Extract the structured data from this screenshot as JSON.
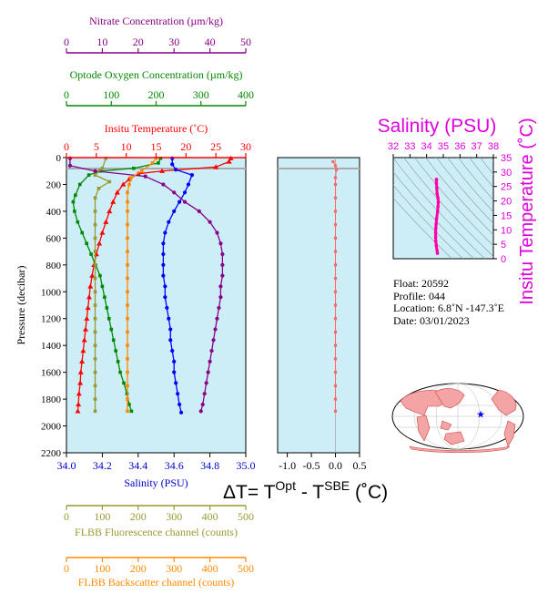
{
  "chart_data": [
    {
      "type": "line",
      "title": "",
      "ylabel": "Pressure (decibar)",
      "ylim": [
        2200,
        0
      ],
      "yticks": [
        0,
        200,
        400,
        600,
        800,
        1000,
        1200,
        1400,
        1600,
        1800,
        2000,
        2200
      ],
      "axes": {
        "salinity": {
          "label": "Salinity (PSU)",
          "range": [
            34.0,
            35.0
          ],
          "ticks": [
            "34.0",
            "34.2",
            "34.4",
            "34.6",
            "34.8",
            "35.0"
          ],
          "color": "#0000cc"
        },
        "temperature": {
          "label": "Insitu Temperature (˚C)",
          "range": [
            0,
            30
          ],
          "ticks": [
            "0",
            "5",
            "10",
            "15",
            "20",
            "25",
            "30"
          ],
          "color": "#ff0000"
        },
        "oxygen": {
          "label": "Optode Oxygen Concentration (µm/kg)",
          "range": [
            0,
            400
          ],
          "ticks": [
            "0",
            "100",
            "200",
            "300",
            "400"
          ],
          "color": "#008800"
        },
        "nitrate": {
          "label": "Nitrate Concentration (µm/kg)",
          "range": [
            0,
            50
          ],
          "ticks": [
            "0",
            "10",
            "20",
            "30",
            "40",
            "50"
          ],
          "color": "#880088"
        },
        "fluorescence": {
          "label": "FLBB Fluorescence channel (counts)",
          "range": [
            0,
            500
          ],
          "ticks": [
            "0",
            "100",
            "200",
            "300",
            "400",
            "500"
          ],
          "color": "#999933"
        },
        "backscatter": {
          "label": "FLBB Backscatter channel (counts)",
          "range": [
            0,
            500
          ],
          "ticks": [
            "0",
            "100",
            "200",
            "300",
            "400",
            "500"
          ],
          "color": "#ff8800"
        }
      },
      "series": [
        {
          "key": "temperature",
          "color": "#ff0000",
          "marker": "triangle",
          "points": [
            [
              27.5,
              5
            ],
            [
              27.2,
              30
            ],
            [
              25,
              70
            ],
            [
              16,
              100
            ],
            [
              12,
              120
            ],
            [
              10.5,
              160
            ],
            [
              9.5,
              200
            ],
            [
              8.5,
              260
            ],
            [
              7.8,
              330
            ],
            [
              7.2,
              400
            ],
            [
              6.6,
              480
            ],
            [
              6,
              560
            ],
            [
              5.5,
              640
            ],
            [
              5,
              720
            ],
            [
              4.6,
              800
            ],
            [
              4.3,
              880
            ],
            [
              4,
              960
            ],
            [
              3.8,
              1040
            ],
            [
              3.6,
              1120
            ],
            [
              3.4,
              1200
            ],
            [
              3.2,
              1280
            ],
            [
              3,
              1360
            ],
            [
              2.8,
              1440
            ],
            [
              2.6,
              1520
            ],
            [
              2.4,
              1600
            ],
            [
              2.3,
              1680
            ],
            [
              2.1,
              1760
            ],
            [
              2,
              1840
            ],
            [
              1.9,
              1890
            ]
          ]
        },
        {
          "key": "salinity",
          "color": "#0000ff",
          "marker": "circle",
          "points": [
            [
              34.59,
              5
            ],
            [
              34.59,
              50
            ],
            [
              34.61,
              90
            ],
            [
              34.7,
              130
            ],
            [
              34.68,
              200
            ],
            [
              34.66,
              260
            ],
            [
              34.63,
              330
            ],
            [
              34.6,
              400
            ],
            [
              34.57,
              480
            ],
            [
              34.55,
              560
            ],
            [
              34.54,
              640
            ],
            [
              34.54,
              720
            ],
            [
              34.54,
              800
            ],
            [
              34.54,
              880
            ],
            [
              34.55,
              960
            ],
            [
              34.55,
              1040
            ],
            [
              34.56,
              1120
            ],
            [
              34.57,
              1200
            ],
            [
              34.58,
              1280
            ],
            [
              34.58,
              1360
            ],
            [
              34.59,
              1440
            ],
            [
              34.6,
              1520
            ],
            [
              34.6,
              1600
            ],
            [
              34.61,
              1680
            ],
            [
              34.62,
              1760
            ],
            [
              34.63,
              1840
            ],
            [
              34.64,
              1900
            ]
          ]
        },
        {
          "key": "oxygen",
          "color": "#008800",
          "marker": "square",
          "points": [
            [
              210,
              5
            ],
            [
              205,
              40
            ],
            [
              150,
              80
            ],
            [
              75,
              100
            ],
            [
              50,
              130
            ],
            [
              30,
              200
            ],
            [
              20,
              280
            ],
            [
              15,
              330
            ],
            [
              18,
              400
            ],
            [
              25,
              480
            ],
            [
              35,
              560
            ],
            [
              45,
              640
            ],
            [
              55,
              720
            ],
            [
              65,
              800
            ],
            [
              75,
              880
            ],
            [
              80,
              960
            ],
            [
              85,
              1040
            ],
            [
              90,
              1120
            ],
            [
              95,
              1200
            ],
            [
              100,
              1280
            ],
            [
              105,
              1360
            ],
            [
              110,
              1440
            ],
            [
              115,
              1520
            ],
            [
              120,
              1600
            ],
            [
              128,
              1680
            ],
            [
              135,
              1760
            ],
            [
              140,
              1840
            ],
            [
              145,
              1890
            ]
          ]
        },
        {
          "key": "nitrate",
          "color": "#880088",
          "marker": "circle",
          "points": [
            [
              1,
              5
            ],
            [
              1,
              60
            ],
            [
              8,
              100
            ],
            [
              22,
              140
            ],
            [
              27,
              200
            ],
            [
              30,
              260
            ],
            [
              33,
              330
            ],
            [
              37,
              400
            ],
            [
              40,
              480
            ],
            [
              42,
              560
            ],
            [
              43,
              640
            ],
            [
              43.5,
              720
            ],
            [
              43.5,
              800
            ],
            [
              43.5,
              880
            ],
            [
              43,
              960
            ],
            [
              43,
              1040
            ],
            [
              42.5,
              1120
            ],
            [
              42,
              1200
            ],
            [
              41.5,
              1280
            ],
            [
              41,
              1360
            ],
            [
              40.5,
              1440
            ],
            [
              40,
              1520
            ],
            [
              39.5,
              1600
            ],
            [
              39,
              1680
            ],
            [
              38.5,
              1760
            ],
            [
              38,
              1840
            ],
            [
              37.5,
              1890
            ]
          ]
        },
        {
          "key": "fluorescence",
          "color": "#999933",
          "marker": "square",
          "points": [
            [
              110,
              5
            ],
            [
              100,
              80
            ],
            [
              80,
              130
            ],
            [
              120,
              180
            ],
            [
              90,
              230
            ],
            [
              80,
              300
            ],
            [
              80,
              400
            ],
            [
              80,
              500
            ],
            [
              80,
              600
            ],
            [
              80,
              700
            ],
            [
              80,
              800
            ],
            [
              80,
              900
            ],
            [
              80,
              1000
            ],
            [
              80,
              1100
            ],
            [
              80,
              1200
            ],
            [
              80,
              1300
            ],
            [
              80,
              1400
            ],
            [
              80,
              1500
            ],
            [
              80,
              1600
            ],
            [
              80,
              1700
            ],
            [
              80,
              1800
            ],
            [
              80,
              1890
            ]
          ]
        },
        {
          "key": "backscatter",
          "color": "#ff8800",
          "marker": "square",
          "points": [
            [
              250,
              5
            ],
            [
              240,
              40
            ],
            [
              210,
              100
            ],
            [
              180,
              150
            ],
            [
              175,
              200
            ],
            [
              170,
              260
            ],
            [
              170,
              330
            ],
            [
              170,
              400
            ],
            [
              170,
              500
            ],
            [
              170,
              600
            ],
            [
              170,
              700
            ],
            [
              170,
              800
            ],
            [
              170,
              900
            ],
            [
              170,
              1000
            ],
            [
              170,
              1100
            ],
            [
              170,
              1200
            ],
            [
              170,
              1300
            ],
            [
              170,
              1400
            ],
            [
              170,
              1500
            ],
            [
              170,
              1600
            ],
            [
              170,
              1700
            ],
            [
              170,
              1800
            ],
            [
              170,
              1890
            ]
          ]
        }
      ]
    },
    {
      "type": "scatter",
      "title": "",
      "xlabel": "ΔT= T^Opt - T^SBE (˚C)",
      "xlabel_parts": {
        "lead": "ΔT= T",
        "sup1": "Opt",
        "mid": " - T",
        "sup2": "SBE",
        "tail": " (˚C)"
      },
      "xlim": [
        -1.2,
        0.5
      ],
      "xticks": [
        "-1.0",
        "-0.5",
        "0.0",
        "0.5"
      ],
      "ylim": [
        2200,
        0
      ],
      "color": "#ff6666",
      "points": [
        [
          -0.05,
          30
        ],
        [
          0.0,
          60
        ],
        [
          0.02,
          90
        ],
        [
          0.0,
          150
        ],
        [
          0,
          200
        ],
        [
          0,
          300
        ],
        [
          0,
          400
        ],
        [
          0,
          500
        ],
        [
          0,
          600
        ],
        [
          0,
          700
        ],
        [
          0,
          800
        ],
        [
          0,
          900
        ],
        [
          0,
          1000
        ],
        [
          0,
          1100
        ],
        [
          0,
          1200
        ],
        [
          0,
          1300
        ],
        [
          0,
          1400
        ],
        [
          0,
          1500
        ],
        [
          0,
          1600
        ],
        [
          0,
          1700
        ],
        [
          0,
          1800
        ],
        [
          0,
          1890
        ]
      ]
    },
    {
      "type": "scatter",
      "title": "Salinity (PSU)",
      "ylabel": "Insitu Temperature (˚C)",
      "xlim": [
        32,
        38
      ],
      "xticks": [
        "32",
        "33",
        "34",
        "35",
        "36",
        "37",
        "38"
      ],
      "ylim": [
        0,
        35
      ],
      "yticks": [
        "0",
        "5",
        "10",
        "15",
        "20",
        "25",
        "30",
        "35"
      ],
      "color": "#ff00aa",
      "points": [
        [
          34.65,
          1.9
        ],
        [
          34.62,
          3
        ],
        [
          34.58,
          4.5
        ],
        [
          34.55,
          6
        ],
        [
          34.54,
          7.5
        ],
        [
          34.54,
          9
        ],
        [
          34.55,
          10.5
        ],
        [
          34.57,
          12
        ],
        [
          34.6,
          14
        ],
        [
          34.66,
          16.5
        ],
        [
          34.68,
          18
        ],
        [
          34.7,
          19.5
        ],
        [
          34.68,
          21
        ],
        [
          34.63,
          22.5
        ],
        [
          34.61,
          24.5
        ],
        [
          34.59,
          26
        ],
        [
          34.59,
          27.2
        ],
        [
          34.59,
          27.5
        ]
      ]
    }
  ],
  "float_info": {
    "float": "Float:  20592",
    "profile": "Profile:  044",
    "location": "Location:  6.8˚N  -147.3˚E",
    "date": "Date:  03/01/2023"
  },
  "map": {
    "marker_color": "#0000ff",
    "marker_lat": 6.8,
    "marker_lon": -147.3
  }
}
